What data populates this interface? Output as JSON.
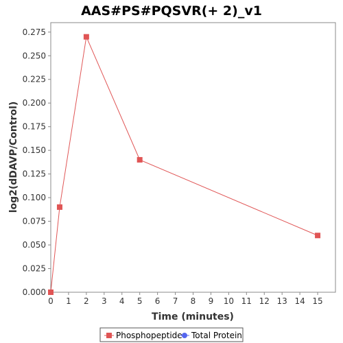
{
  "chart_data": {
    "type": "line",
    "title": "AAS#PS#PQSVR(+ 2)_v1",
    "xlabel": "Time (minutes)",
    "ylabel": "log2(dDAVP/Control)",
    "xlim": [
      0,
      16
    ],
    "ylim": [
      0,
      0.285
    ],
    "x_ticks": [
      0,
      1,
      2,
      3,
      4,
      5,
      6,
      7,
      8,
      9,
      10,
      11,
      12,
      13,
      14,
      15
    ],
    "x_tick_labels": [
      "0",
      "1",
      "2",
      "3",
      "4",
      "5",
      "6",
      "7",
      "8",
      "9",
      "10",
      "11",
      "12",
      "13",
      "14",
      "15"
    ],
    "y_ticks": [
      0,
      0.025,
      0.05,
      0.075,
      0.1,
      0.125,
      0.15,
      0.175,
      0.2,
      0.225,
      0.25,
      0.275
    ],
    "y_tick_labels": [
      "0.000",
      "0.025",
      "0.050",
      "0.075",
      "0.100",
      "0.125",
      "0.150",
      "0.175",
      "0.200",
      "0.225",
      "0.250",
      "0.275"
    ],
    "grid": false,
    "legend_position": "bottom",
    "series": [
      {
        "name": "Phosphopeptide",
        "color": "#e05555",
        "marker": "square",
        "x": [
          0,
          0.5,
          2,
          5,
          15
        ],
        "y": [
          0,
          0.09,
          0.27,
          0.14,
          0.06
        ]
      },
      {
        "name": "Total Protein",
        "color": "#5566ee",
        "marker": "circle",
        "x": [],
        "y": []
      }
    ]
  }
}
